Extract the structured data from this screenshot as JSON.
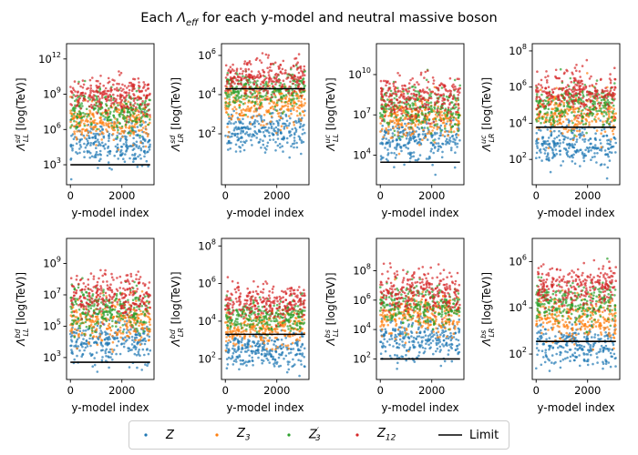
{
  "figure_title": "Each Λ_eff for each y-model and neutral massive boson",
  "legend": {
    "entries": [
      {
        "label": "Z",
        "sub": "",
        "sup": "",
        "color": "#1f77b4",
        "kind": "dot"
      },
      {
        "label": "Z",
        "sub": "3",
        "sup": "",
        "color": "#ff7f0e",
        "kind": "dot"
      },
      {
        "label": "Z",
        "sub": "3",
        "sup": "′",
        "color": "#2ca02c",
        "kind": "dot"
      },
      {
        "label": "Z",
        "sub": "12",
        "sup": "",
        "color": "#d62728",
        "kind": "dot"
      },
      {
        "label": "Limit",
        "sub": "",
        "sup": "",
        "color": "#000000",
        "kind": "line"
      }
    ]
  },
  "chart_data": [
    {
      "type": "scatter",
      "title": "",
      "ylabel_sub": "LL",
      "ylabel_sup": "sd",
      "ylabel_rest": " [log(TeV)]",
      "xlabel": "y-model index",
      "yscale": "log",
      "xlim": [
        -150,
        3250
      ],
      "ylim_exp": [
        1.3,
        13.3
      ],
      "xticks": [
        0,
        2000
      ],
      "xticklabels": [
        "0",
        "2000"
      ],
      "yticks_exp": [
        3,
        6,
        9,
        12
      ],
      "limit": 1000,
      "n_models": 3100,
      "series": [
        {
          "name": "Z",
          "median_exp": 4.9,
          "spread": 0.9
        },
        {
          "name": "Z_3",
          "median_exp": 6.6,
          "spread": 0.8
        },
        {
          "name": "Z'_3",
          "median_exp": 7.6,
          "spread": 0.8
        },
        {
          "name": "Z_12",
          "median_exp": 8.9,
          "spread": 0.8
        }
      ]
    },
    {
      "type": "scatter",
      "title": "",
      "ylabel_sub": "LR",
      "ylabel_sup": "sd",
      "ylabel_rest": " [log(TeV)]",
      "xlabel": "y-model index",
      "yscale": "log",
      "xlim": [
        -150,
        3250
      ],
      "ylim_exp": [
        -0.6,
        6.6
      ],
      "xticks": [
        0,
        2000
      ],
      "xticklabels": [
        "0",
        "2000"
      ],
      "yticks_exp": [
        2,
        4,
        6
      ],
      "limit": 20000,
      "n_models": 3100,
      "series": [
        {
          "name": "Z",
          "median_exp": 2.1,
          "spread": 0.5
        },
        {
          "name": "Z_3",
          "median_exp": 3.5,
          "spread": 0.5
        },
        {
          "name": "Z'_3",
          "median_exp": 4.2,
          "spread": 0.5
        },
        {
          "name": "Z_12",
          "median_exp": 4.8,
          "spread": 0.5
        }
      ]
    },
    {
      "type": "scatter",
      "title": "",
      "ylabel_sub": "LL",
      "ylabel_sup": "uc",
      "ylabel_rest": " [log(TeV)]",
      "xlabel": "y-model index",
      "yscale": "log",
      "xlim": [
        -150,
        3250
      ],
      "ylim_exp": [
        1.8,
        12.3
      ],
      "xticks": [
        0,
        2000
      ],
      "xticklabels": [
        "0",
        "2000"
      ],
      "yticks_exp": [
        4,
        7,
        10
      ],
      "limit": 3000,
      "n_models": 3100,
      "series": [
        {
          "name": "Z",
          "median_exp": 5.2,
          "spread": 0.8
        },
        {
          "name": "Z_3",
          "median_exp": 6.8,
          "spread": 0.8
        },
        {
          "name": "Z'_3",
          "median_exp": 7.5,
          "spread": 0.8
        },
        {
          "name": "Z_12",
          "median_exp": 8.3,
          "spread": 0.8
        }
      ]
    },
    {
      "type": "scatter",
      "title": "",
      "ylabel_sub": "LR",
      "ylabel_sup": "uc",
      "ylabel_rest": " [log(TeV)]",
      "xlabel": "y-model index",
      "yscale": "log",
      "xlim": [
        -150,
        3250
      ],
      "ylim_exp": [
        0.6,
        8.4
      ],
      "xticks": [
        0,
        2000
      ],
      "xticklabels": [
        "0",
        "2000"
      ],
      "yticks_exp": [
        2,
        4,
        6,
        8
      ],
      "limit": 6000,
      "n_models": 3100,
      "series": [
        {
          "name": "Z",
          "median_exp": 2.8,
          "spread": 0.6
        },
        {
          "name": "Z_3",
          "median_exp": 4.5,
          "spread": 0.6
        },
        {
          "name": "Z'_3",
          "median_exp": 5.0,
          "spread": 0.6
        },
        {
          "name": "Z_12",
          "median_exp": 5.7,
          "spread": 0.6
        }
      ]
    },
    {
      "type": "scatter",
      "title": "",
      "ylabel_sub": "LL",
      "ylabel_sup": "bd",
      "ylabel_rest": " [log(TeV)]",
      "xlabel": "y-model index",
      "yscale": "log",
      "xlim": [
        -150,
        3250
      ],
      "ylim_exp": [
        1.6,
        10.6
      ],
      "xticks": [
        0,
        2000
      ],
      "xticklabels": [
        "0",
        "2000"
      ],
      "yticks_exp": [
        3,
        5,
        7,
        9
      ],
      "limit": 500,
      "n_models": 3100,
      "series": [
        {
          "name": "Z",
          "median_exp": 4.0,
          "spread": 0.7
        },
        {
          "name": "Z_3",
          "median_exp": 5.3,
          "spread": 0.7
        },
        {
          "name": "Z'_3",
          "median_exp": 6.1,
          "spread": 0.7
        },
        {
          "name": "Z_12",
          "median_exp": 7.0,
          "spread": 0.7
        }
      ]
    },
    {
      "type": "scatter",
      "title": "",
      "ylabel_sub": "LR",
      "ylabel_sup": "bd",
      "ylabel_rest": " [log(TeV)]",
      "xlabel": "y-model index",
      "yscale": "log",
      "xlim": [
        -150,
        3250
      ],
      "ylim_exp": [
        0.9,
        8.4
      ],
      "xticks": [
        0,
        2000
      ],
      "xticklabels": [
        "0",
        "2000"
      ],
      "yticks_exp": [
        2,
        4,
        6,
        8
      ],
      "limit": 2000,
      "n_models": 3100,
      "series": [
        {
          "name": "Z",
          "median_exp": 2.4,
          "spread": 0.45
        },
        {
          "name": "Z_3",
          "median_exp": 3.6,
          "spread": 0.45
        },
        {
          "name": "Z'_3",
          "median_exp": 4.3,
          "spread": 0.45
        },
        {
          "name": "Z_12",
          "median_exp": 5.0,
          "spread": 0.45
        }
      ]
    },
    {
      "type": "scatter",
      "title": "",
      "ylabel_sub": "LL",
      "ylabel_sup": "bs",
      "ylabel_rest": " [log(TeV)]",
      "xlabel": "y-model index",
      "yscale": "log",
      "xlim": [
        -150,
        3250
      ],
      "ylim_exp": [
        0.6,
        10.2
      ],
      "xticks": [
        0,
        2000
      ],
      "xticklabels": [
        "0",
        "2000"
      ],
      "yticks_exp": [
        2,
        4,
        6,
        8
      ],
      "limit": 100,
      "n_models": 3100,
      "series": [
        {
          "name": "Z",
          "median_exp": 3.3,
          "spread": 0.7
        },
        {
          "name": "Z_3",
          "median_exp": 4.9,
          "spread": 0.7
        },
        {
          "name": "Z'_3",
          "median_exp": 5.7,
          "spread": 0.7
        },
        {
          "name": "Z_12",
          "median_exp": 6.6,
          "spread": 0.7
        }
      ]
    },
    {
      "type": "scatter",
      "title": "",
      "ylabel_sub": "LR",
      "ylabel_sup": "bs",
      "ylabel_rest": " [log(TeV)]",
      "xlabel": "y-model index",
      "yscale": "log",
      "xlim": [
        -150,
        3250
      ],
      "ylim_exp": [
        0.9,
        7.0
      ],
      "xticks": [
        0,
        2000
      ],
      "xticklabels": [
        "0",
        "2000"
      ],
      "yticks_exp": [
        2,
        4,
        6
      ],
      "limit": 350,
      "n_models": 3100,
      "series": [
        {
          "name": "Z",
          "median_exp": 2.4,
          "spread": 0.45
        },
        {
          "name": "Z_3",
          "median_exp": 3.5,
          "spread": 0.45
        },
        {
          "name": "Z'_3",
          "median_exp": 4.2,
          "spread": 0.45
        },
        {
          "name": "Z_12",
          "median_exp": 4.9,
          "spread": 0.45
        }
      ]
    }
  ],
  "colors": {
    "Z": "#1f77b4",
    "Z_3": "#ff7f0e",
    "Z'_3": "#2ca02c",
    "Z_12": "#d62728",
    "limit": "#000000"
  }
}
